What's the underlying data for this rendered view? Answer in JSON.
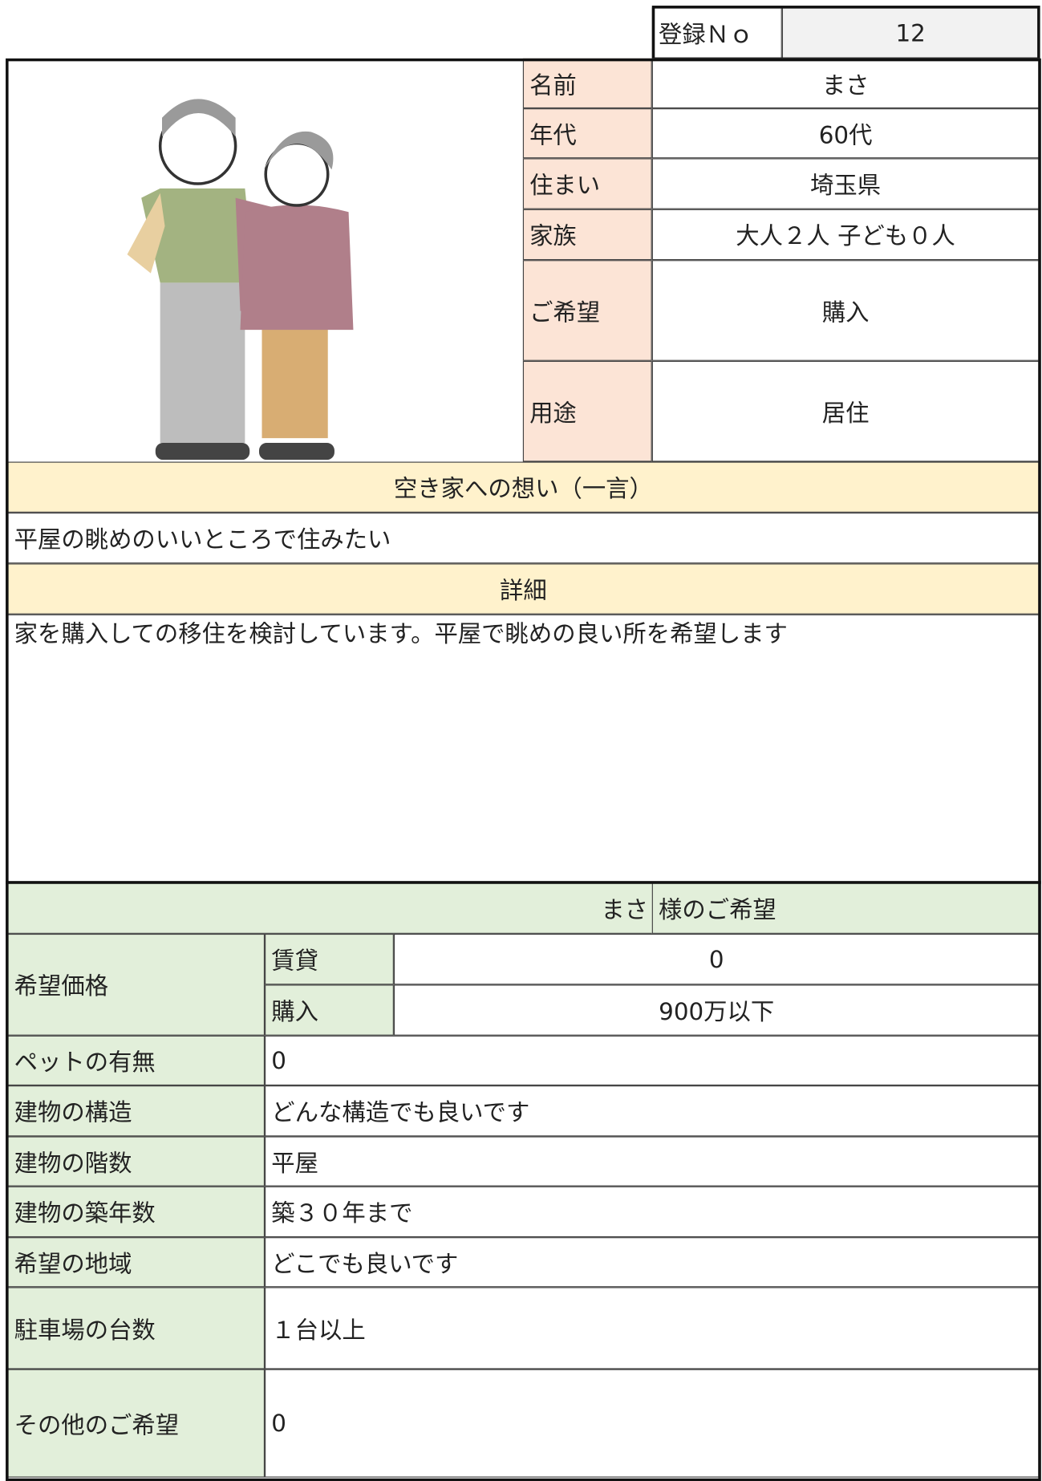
{
  "registration": {
    "label": "登録Ｎｏ",
    "value": "12"
  },
  "profile": [
    {
      "label": "名前",
      "value": "まさ"
    },
    {
      "label": "年代",
      "value": "60代"
    },
    {
      "label": "住まい",
      "value": "埼玉県"
    },
    {
      "label": "家族",
      "value": "大人２人 子ども０人"
    },
    {
      "label": "ご希望",
      "value": "購入"
    },
    {
      "label": "用途",
      "value": "居住"
    }
  ],
  "message": {
    "heading": "空き家への想い（一言）",
    "text": "平屋の眺めのいいところで住みたい"
  },
  "detail": {
    "heading": "詳細",
    "text": "家を購入しての移住を検討しています。平屋で眺めの良い所を希望します"
  },
  "wishes": {
    "name": "まさ",
    "heading": "様のご希望",
    "price": {
      "label": "希望価格",
      "rows": [
        {
          "label": "賃貸",
          "value": "0"
        },
        {
          "label": "購入",
          "value": "900万以下"
        }
      ]
    },
    "rows": [
      {
        "label": "ペットの有無",
        "value": "0"
      },
      {
        "label": "建物の構造",
        "value": "どんな構造でも良いです"
      },
      {
        "label": "建物の階数",
        "value": "平屋"
      },
      {
        "label": "建物の築年数",
        "value": "築３０年まで"
      },
      {
        "label": "希望の地域",
        "value": "どこでも良いです"
      },
      {
        "label": "駐車場の台数",
        "value": "１台以上"
      },
      {
        "label": "その他のご希望",
        "value": "0"
      }
    ]
  }
}
